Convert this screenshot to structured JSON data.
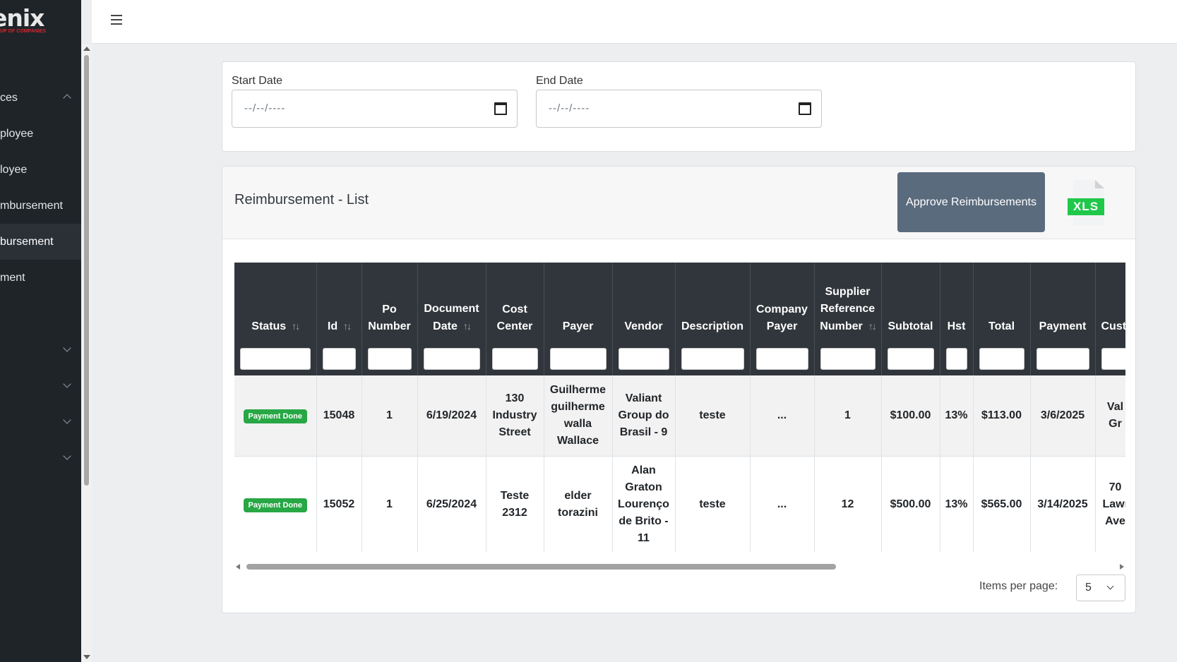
{
  "brand": {
    "logo_text": "enix",
    "logo_tagline": "UP OF COMPANIES"
  },
  "sidebar": {
    "items": [
      {
        "label": "ces",
        "chevron": "up"
      },
      {
        "label": "ployee"
      },
      {
        "label": "loyee"
      },
      {
        "label": "mbursement"
      },
      {
        "label": "bursement",
        "active": true
      },
      {
        "label": "ment"
      },
      {
        "label": "",
        "chevron": "down"
      },
      {
        "label": "",
        "chevron": "down"
      },
      {
        "label": "",
        "chevron": "down"
      },
      {
        "label": "",
        "chevron": "down"
      }
    ]
  },
  "filters": {
    "start_label": "Start Date",
    "end_label": "End Date",
    "date_placeholder": "--/--/----"
  },
  "list": {
    "title": "Reimbursement - List",
    "approve_label": "Approve Reimbursements",
    "export_label": "XLS",
    "export_color": "#20c84a"
  },
  "table": {
    "columns": [
      {
        "label": "Status",
        "sortable": true
      },
      {
        "label": "Id",
        "sortable": true
      },
      {
        "label": "Po Number"
      },
      {
        "label": "Document Date",
        "sortable": true
      },
      {
        "label": "Cost Center"
      },
      {
        "label": "Payer"
      },
      {
        "label": "Vendor"
      },
      {
        "label": "Description"
      },
      {
        "label": "Company Payer"
      },
      {
        "label": "Supplier Reference Number",
        "sortable": true
      },
      {
        "label": "Subtotal"
      },
      {
        "label": "Hst"
      },
      {
        "label": "Total"
      },
      {
        "label": "Payment"
      },
      {
        "label": "Cust"
      }
    ],
    "rows": [
      {
        "status": "Payment Done",
        "id": "15048",
        "po_number": "1",
        "document_date": "6/19/2024",
        "cost_center": "130 Industry Street",
        "payer": "Guilherme guilherme walla Wallace",
        "vendor": "Valiant Group do Brasil - 9",
        "description": "teste",
        "company_payer": "...",
        "supplier_ref": "1",
        "subtotal": "$100.00",
        "hst": "13%",
        "total": "$113.00",
        "payment": "3/6/2025",
        "customer": "Val Gr"
      },
      {
        "status": "Payment Done",
        "id": "15052",
        "po_number": "1",
        "document_date": "6/25/2024",
        "cost_center": "Teste 2312",
        "payer": "elder torazini",
        "vendor": "Alan Graton Lourenço de Brito - 11",
        "description": "teste",
        "company_payer": "...",
        "supplier_ref": "12",
        "subtotal": "$500.00",
        "hst": "13%",
        "total": "$565.00",
        "payment": "3/14/2025",
        "customer": "70 Lawr Ave"
      }
    ],
    "status_color": "#28a745",
    "header_color": "#31363c"
  },
  "pagination": {
    "items_per_page_label": "Items per page:",
    "items_per_page_value": "5"
  },
  "icons": {
    "hamburger": "menu-icon",
    "calendar": "calendar-icon",
    "sort": "sort-icon",
    "export": "xls-file-icon",
    "chevron": "chevron-down-icon"
  }
}
